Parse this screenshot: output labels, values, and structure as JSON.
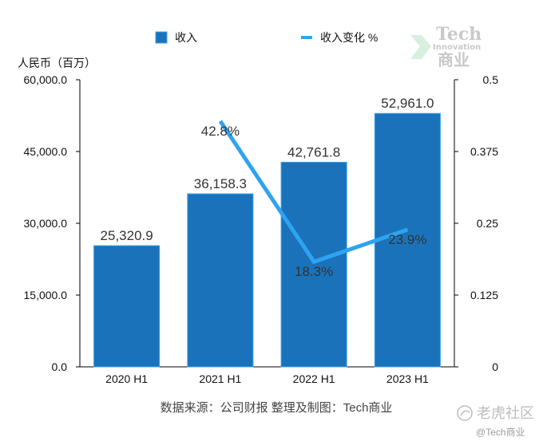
{
  "chart_data": {
    "type": "bar",
    "categories": [
      "2020 H1",
      "2021 H1",
      "2022 H1",
      "2023 H1"
    ],
    "series": [
      {
        "name": "收入",
        "kind": "bar",
        "axis": "left",
        "values": [
          25320.9,
          36158.3,
          42761.8,
          52961.0
        ],
        "labels": [
          "25,320.9",
          "36,158.3",
          "42,761.8",
          "52,961.0"
        ],
        "color": "#1a73ba"
      },
      {
        "name": "收入变化 %",
        "kind": "line",
        "axis": "right",
        "values": [
          null,
          0.428,
          0.183,
          0.239
        ],
        "labels": [
          "",
          "42.8%",
          "18.3%",
          "23.9%"
        ],
        "color": "#2ea3f2"
      }
    ],
    "ylabel": "人民币（百万）",
    "ylim": [
      0,
      60000
    ],
    "y_ticks": [
      "0.0",
      "15,000.0",
      "30,000.0",
      "45,000.0",
      "60,000.0"
    ],
    "y2lim": [
      0,
      0.5
    ],
    "y2_ticks": [
      "0",
      "0.125",
      "0.25",
      "0.375",
      "0.5"
    ],
    "legend_position": "top",
    "grid": false
  },
  "source_note": "数据来源：公司财报 整理及制图：Tech商业",
  "watermark": {
    "line1": "Tech",
    "line2": "Innovation",
    "line3": "商业"
  },
  "brand": {
    "name": "老虎社区",
    "handle": "@Tech商业"
  },
  "colors": {
    "bar": "#1a73ba",
    "bar_border": "#3aa0e6",
    "line": "#2ea3f2",
    "axis": "#000000"
  }
}
